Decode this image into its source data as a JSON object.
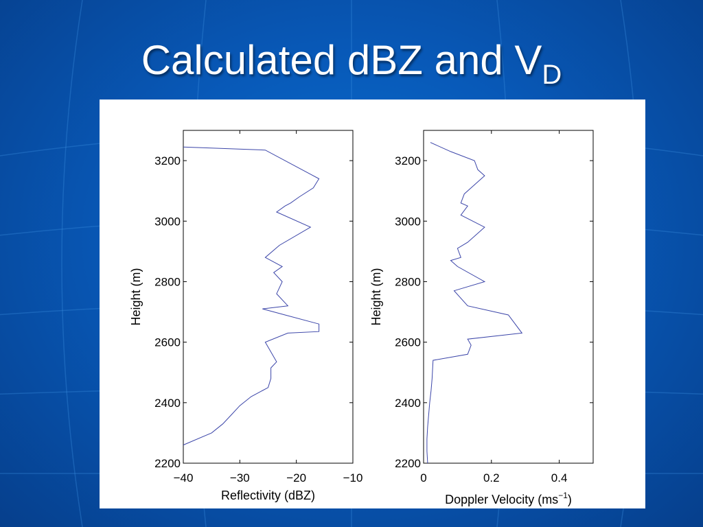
{
  "slide": {
    "title_main": "Calculated dBZ and V",
    "title_sub": "D"
  },
  "colors": {
    "line": "#3a44a8",
    "background": "#0859b8"
  },
  "chart_data": [
    {
      "type": "line",
      "xlabel": "Reflectivity (dBZ)",
      "ylabel": "Height (m)",
      "xlim": [
        -40,
        -10
      ],
      "ylim": [
        2200,
        3300
      ],
      "xticks": [
        -40,
        -30,
        -20,
        -10
      ],
      "xtick_labels": [
        "−40",
        "−30",
        "−20",
        "−10"
      ],
      "yticks": [
        2200,
        2400,
        2600,
        2800,
        3000,
        3200
      ],
      "ytick_labels": [
        "2200",
        "2400",
        "2600",
        "2800",
        "3000",
        "3200"
      ],
      "grid": false,
      "series": [
        {
          "x": [
            -40,
            -35,
            -33,
            -31.5,
            -30,
            -28,
            -25,
            -24.5,
            -24.5,
            -23.5,
            -25.5,
            -21.5,
            -16,
            -16,
            -22,
            -26,
            -21.5,
            -23.5,
            -22.5,
            -24,
            -22.5,
            -25.5,
            -23,
            -17.5,
            -23.5,
            -22,
            -21,
            -19.5,
            -17,
            -16,
            -25.5,
            -40
          ],
          "y": [
            2260,
            2300,
            2330,
            2360,
            2390,
            2420,
            2450,
            2480,
            2515,
            2535,
            2600,
            2630,
            2635,
            2660,
            2690,
            2710,
            2720,
            2760,
            2800,
            2830,
            2850,
            2880,
            2920,
            2980,
            3030,
            3050,
            3060,
            3080,
            3110,
            3140,
            3235,
            3245
          ]
        }
      ]
    },
    {
      "type": "line",
      "xlabel": "Doppler Velocity (ms",
      "xlabel_sup": "−1",
      "xlabel_end": ")",
      "ylabel": "Height (m)",
      "xlim": [
        0,
        0.5
      ],
      "ylim": [
        2200,
        3300
      ],
      "xticks": [
        0,
        0.2,
        0.4
      ],
      "xtick_labels": [
        "0",
        "0.2",
        "0.4"
      ],
      "yticks": [
        2200,
        2400,
        2600,
        2800,
        3000,
        3200
      ],
      "ytick_labels": [
        "2200",
        "2400",
        "2600",
        "2800",
        "3000",
        "3200"
      ],
      "grid": false,
      "series": [
        {
          "x": [
            0.012,
            0.01,
            0.01,
            0.012,
            0.015,
            0.018,
            0.022,
            0.025,
            0.028,
            0.13,
            0.14,
            0.13,
            0.29,
            0.25,
            0.13,
            0.09,
            0.18,
            0.1,
            0.08,
            0.11,
            0.1,
            0.13,
            0.18,
            0.11,
            0.13,
            0.11,
            0.12,
            0.14,
            0.18,
            0.16,
            0.15,
            0.08,
            0.02
          ],
          "y": [
            2200,
            2240,
            2280,
            2320,
            2360,
            2400,
            2440,
            2480,
            2540,
            2560,
            2590,
            2610,
            2630,
            2690,
            2720,
            2770,
            2800,
            2850,
            2870,
            2880,
            2910,
            2930,
            2980,
            3020,
            3050,
            3060,
            3090,
            3110,
            3150,
            3170,
            3200,
            3230,
            3260
          ]
        }
      ]
    }
  ]
}
